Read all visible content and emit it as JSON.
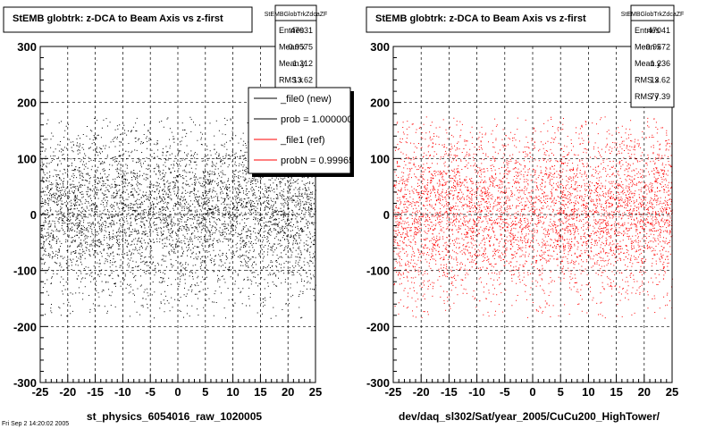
{
  "chart_data": [
    {
      "type": "scatter",
      "title": "StEMB globtrk: z-DCA to Beam Axis vs z-first",
      "xlabel": "st_physics_6054016_raw_1020005",
      "ylabel": "",
      "xlim": [
        -25,
        25
      ],
      "ylim": [
        -300,
        300
      ],
      "xticks": [
        -25,
        -20,
        -15,
        -10,
        -5,
        0,
        5,
        10,
        15,
        20,
        25
      ],
      "yticks": [
        -300,
        -200,
        -100,
        0,
        100,
        200,
        300
      ],
      "grid": true,
      "point_color": "#000000",
      "stats": {
        "name": "StEMBGlobTrkZdcaZF",
        "rows": [
          {
            "label": "Entries",
            "value": "47031"
          },
          {
            "label": "Mean x",
            "value": "-0.9575"
          },
          {
            "label": "Mean y",
            "value": "1.212"
          },
          {
            "label": "RMS x",
            "value": "13.62"
          }
        ]
      },
      "legend": {
        "placement": "top-right",
        "entries": [
          {
            "label": "_file0 (new)",
            "color": "#000000"
          },
          {
            "label": "prob = 1.000000",
            "color": "#000000"
          },
          {
            "label": "_file1 (ref)",
            "color": "#ff0000"
          },
          {
            "label": "probN = 0.99965",
            "color": "#ff0000"
          }
        ]
      }
    },
    {
      "type": "scatter",
      "title": "StEMB globtrk: z-DCA to Beam Axis vs z-first",
      "xlabel": "dev/daq_sl302/Sat/year_2005/CuCu200_HighTower/",
      "ylabel": "",
      "xlim": [
        -25,
        25
      ],
      "ylim": [
        -300,
        300
      ],
      "xticks": [
        -25,
        -20,
        -15,
        -10,
        -5,
        0,
        5,
        10,
        15,
        20,
        25
      ],
      "yticks": [
        -300,
        -200,
        -100,
        0,
        100,
        200,
        300
      ],
      "grid": true,
      "point_color": "#ff0000",
      "stats": {
        "name": "StEMBGlobTrkZdcaZF",
        "rows": [
          {
            "label": "Entries",
            "value": "47041"
          },
          {
            "label": "Mean x",
            "value": "-0.9572"
          },
          {
            "label": "Mean y",
            "value": "1.236"
          },
          {
            "label": "RMS x",
            "value": "13.62"
          },
          {
            "label": "RMS y",
            "value": "77.39"
          }
        ]
      }
    }
  ],
  "footer_stamp": "Fri Sep 2 14:20:02 2005"
}
